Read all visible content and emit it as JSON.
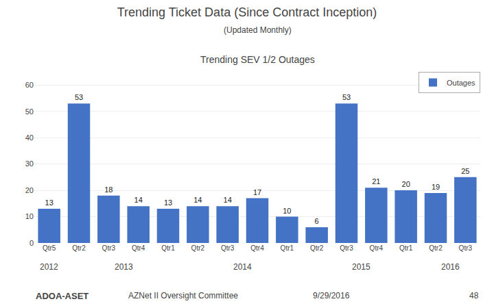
{
  "chart_data": {
    "type": "bar",
    "title": "Trending Ticket Data (Since Contract Inception)",
    "subtitle": "(Updated Monthly)",
    "categories": [
      "Qtr5",
      "Qtr2",
      "Qtr3",
      "Qtr4",
      "Qtr1",
      "Qtr2",
      "Qtr3",
      "Qtr4",
      "Qtr1",
      "Qtr2",
      "Qtr3",
      "Qtr4",
      "Qtr1",
      "Qtr2",
      "Qtr3"
    ],
    "series": [
      {
        "name": "Outages",
        "color": "#4472C4",
        "values": [
          13,
          53,
          18,
          14,
          13,
          14,
          14,
          17,
          10,
          6,
          53,
          21,
          20,
          19,
          25
        ]
      }
    ],
    "ylim": [
      0,
      65
    ],
    "yticks": [
      0,
      10,
      20,
      30,
      40,
      50,
      60
    ],
    "grid": true,
    "legend": "upper right",
    "data_labels": true,
    "annotations": [
      "Trending SEV 1/2 Outages",
      "ADOA-ASET",
      "AZNet II Oversight Committee",
      "9/29/2016",
      "48",
      {
        "text": "2012",
        "x": 0
      },
      {
        "text": "2013",
        "x": 2.5
      },
      {
        "text": "2014",
        "x": 6.5
      },
      {
        "text": "2015",
        "x": 10.5
      },
      {
        "text": "2016",
        "x": 13.5
      }
    ]
  }
}
